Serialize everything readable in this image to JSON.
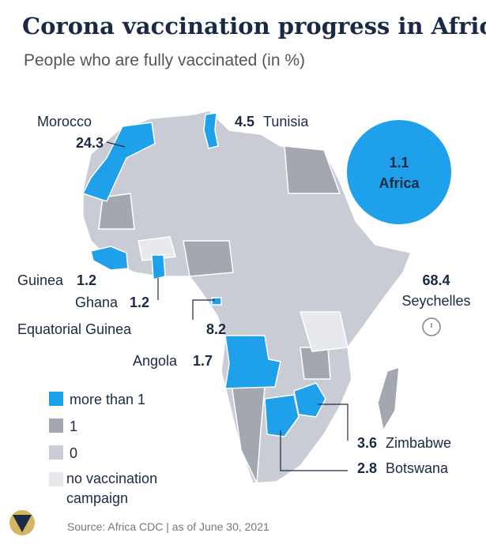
{
  "header": {
    "title": "Corona vaccination progress in Africa",
    "subtitle": "People who are fully vaccinated (in %)"
  },
  "total": {
    "value": 1.1,
    "label": "Africa"
  },
  "callouts": [
    {
      "country": "Morocco",
      "value": 24.3
    },
    {
      "country": "Tunisia",
      "value": 4.5
    },
    {
      "country": "Guinea",
      "value": 1.2
    },
    {
      "country": "Ghana",
      "value": 1.2
    },
    {
      "country": "Equatorial Guinea",
      "value": 8.2
    },
    {
      "country": "Angola",
      "value": 1.7
    },
    {
      "country": "Seychelles",
      "value": 68.4
    },
    {
      "country": "Zimbabwe",
      "value": 3.6
    },
    {
      "country": "Botswana",
      "value": 2.8
    }
  ],
  "legend": [
    "more than 1",
    "1",
    "0",
    "no vaccination campaign"
  ],
  "source": "Source: Africa CDC | as of June 30, 2021"
}
